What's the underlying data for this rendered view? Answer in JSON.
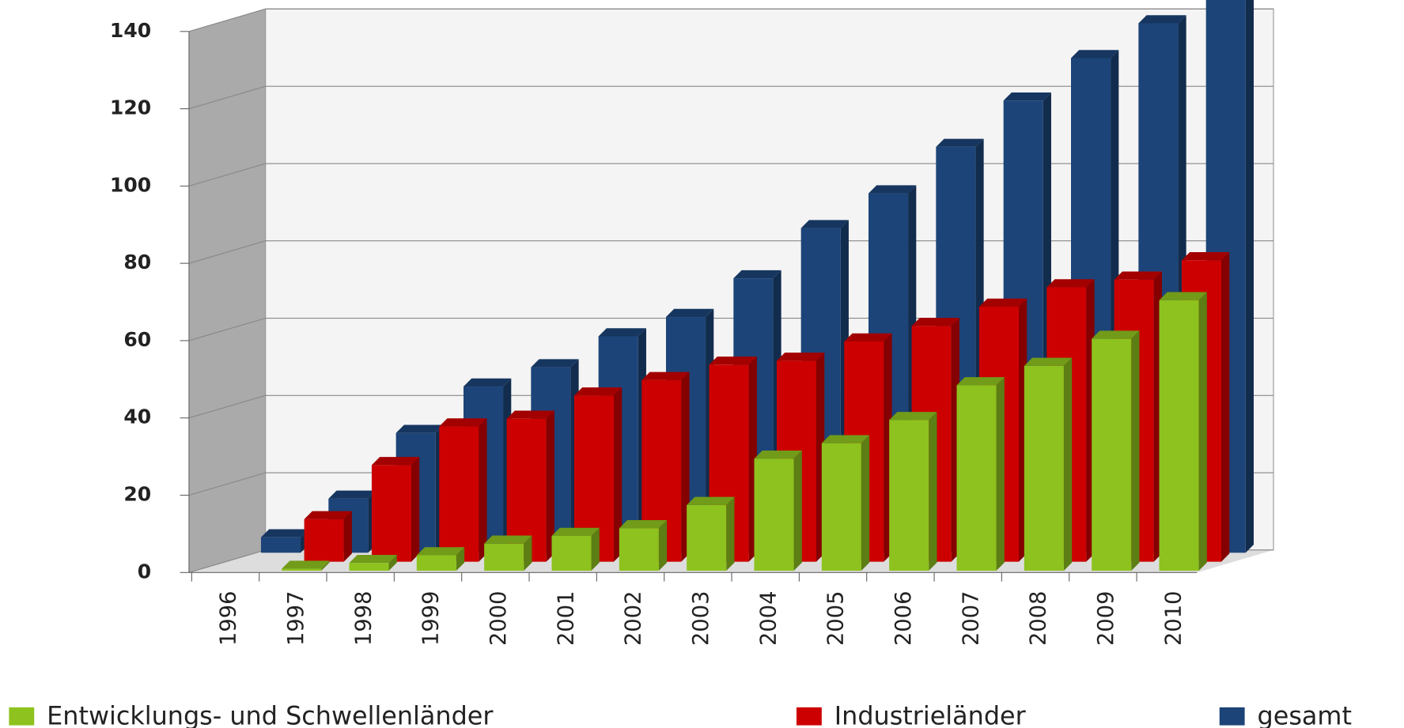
{
  "chart_data": {
    "type": "bar3d",
    "categories": [
      "1996",
      "1997",
      "1998",
      "1999",
      "2000",
      "2001",
      "2002",
      "2003",
      "2004",
      "2005",
      "2006",
      "2007",
      "2008",
      "2009",
      "2010"
    ],
    "series": [
      {
        "name": "Entwicklungs- und Schwellenländer",
        "color": "#8dc21f",
        "values": [
          null,
          0.5,
          2,
          4,
          7,
          9,
          11,
          17,
          29,
          33,
          39,
          48,
          53,
          60,
          70
        ]
      },
      {
        "name": "Industrieländer",
        "color": "#cc0000",
        "values": [
          null,
          11,
          25,
          35,
          37,
          43,
          47,
          51,
          52,
          57,
          61,
          66,
          71,
          73,
          78
        ]
      },
      {
        "name": "gesamt",
        "color": "#1c4478",
        "values": [
          4,
          14,
          31,
          43,
          48,
          56,
          61,
          71,
          84,
          93,
          105,
          117,
          128,
          137,
          145
        ]
      }
    ],
    "ylim": [
      0,
      140
    ],
    "yticks": [
      0,
      20,
      40,
      60,
      80,
      100,
      120,
      140
    ],
    "grid": true
  }
}
